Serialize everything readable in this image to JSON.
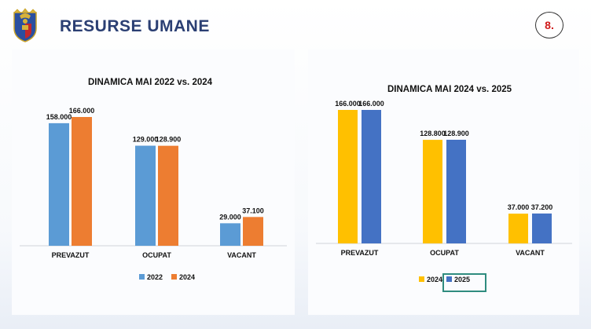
{
  "header": {
    "title": "RESURSE UMANE",
    "page_number": "8.",
    "logo": "romanian-coat-of-arms-icon"
  },
  "colors": {
    "title": "#2b3f73",
    "badge_text": "#d01a1a",
    "series_2022": "#5b9bd5",
    "series_2024_left": "#ed7d31",
    "series_2024_right": "#ffc000",
    "series_2025": "#4472c4"
  },
  "chart_data": [
    {
      "type": "bar",
      "title": "DINAMICA MAI 2022 vs. 2024",
      "categories": [
        "PREVAZUT",
        "OCUPAT",
        "VACANT"
      ],
      "series": [
        {
          "name": "2022",
          "values": [
            158000,
            129000,
            29000
          ],
          "labels": [
            "158.000",
            "129.000",
            "29.000"
          ],
          "color": "#5b9bd5"
        },
        {
          "name": "2024",
          "values": [
            166000,
            128900,
            37100
          ],
          "labels": [
            "166.000",
            "128.900",
            "37.100"
          ],
          "color": "#ed7d31"
        }
      ],
      "ylim": [
        0,
        166000
      ],
      "grid": false,
      "legend": "bottom"
    },
    {
      "type": "bar",
      "title": "DINAMICA MAI 2024 vs. 2025",
      "categories": [
        "PREVAZUT",
        "OCUPAT",
        "VACANT"
      ],
      "series": [
        {
          "name": "2024",
          "values": [
            166000,
            128800,
            37000
          ],
          "labels": [
            "166.000",
            "128.800",
            "37.000"
          ],
          "color": "#ffc000"
        },
        {
          "name": "2025",
          "values": [
            166000,
            128900,
            37200
          ],
          "labels": [
            "166.000",
            "128.900",
            "37.200"
          ],
          "color": "#4472c4"
        }
      ],
      "ylim": [
        0,
        166000
      ],
      "grid": false,
      "legend": "bottom",
      "legend_highlight": "2025"
    }
  ]
}
